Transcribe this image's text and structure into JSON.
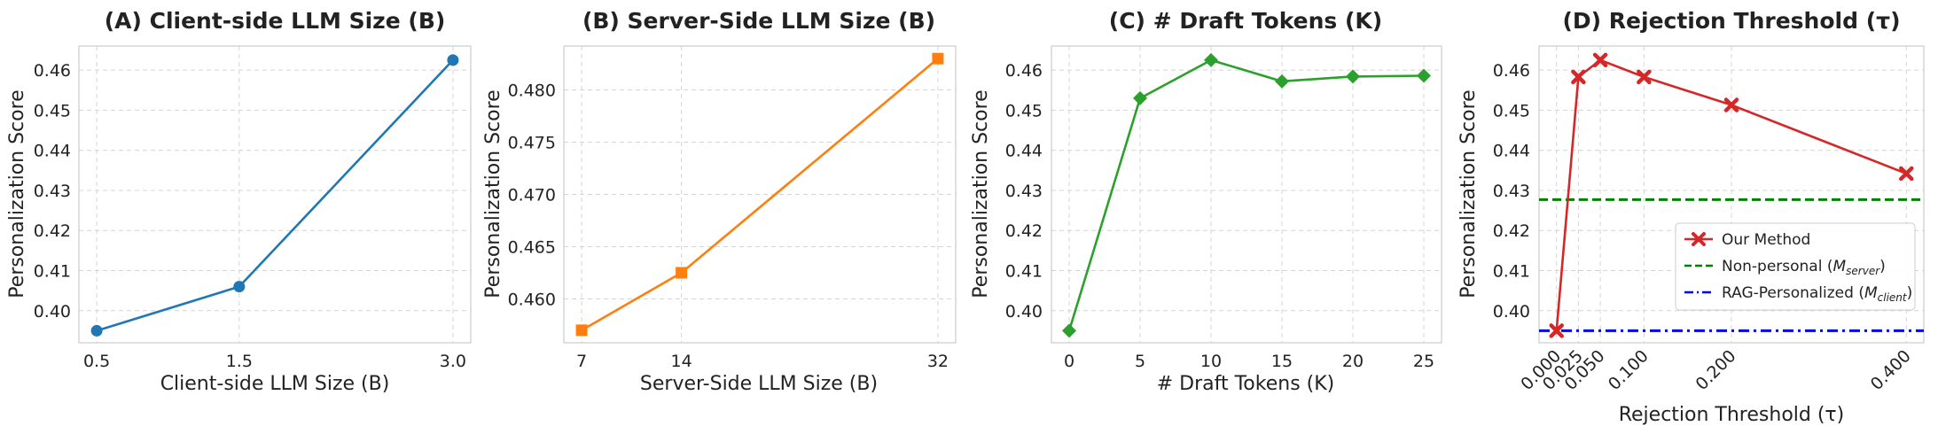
{
  "chart_data": [
    {
      "type": "line",
      "title": "(A) Client-side LLM Size (B)",
      "xlabel": "Client-side LLM Size (B)",
      "ylabel": "Personalization Score",
      "x": [
        0.5,
        1.5,
        3.0
      ],
      "xticks": [
        "0.5",
        "1.5",
        "3.0"
      ],
      "ylim": [
        0.392,
        0.466
      ],
      "yticks": [
        "0.40",
        "0.41",
        "0.42",
        "0.43",
        "0.44",
        "0.45",
        "0.46"
      ],
      "grid": true,
      "series": [
        {
          "values": [
            0.395,
            0.406,
            0.4625
          ],
          "color": "#1f77b4",
          "marker": "circle"
        }
      ]
    },
    {
      "type": "line",
      "title": "(B) Server-Side LLM Size (B)",
      "xlabel": "Server-Side LLM Size (B)",
      "ylabel": "Personalization Score",
      "x": [
        7,
        14,
        32
      ],
      "xticks": [
        "7",
        "14",
        "32"
      ],
      "ylim": [
        0.4558,
        0.4842
      ],
      "yticks": [
        "0.460",
        "0.465",
        "0.470",
        "0.475",
        "0.480"
      ],
      "grid": true,
      "series": [
        {
          "values": [
            0.457,
            0.4625,
            0.483
          ],
          "color": "#ff7f0e",
          "marker": "square"
        }
      ]
    },
    {
      "type": "line",
      "title": "(C) # Draft Tokens (K)",
      "xlabel": "# Draft Tokens (K)",
      "ylabel": "Personalization Score",
      "x": [
        0,
        5,
        10,
        15,
        20,
        25
      ],
      "xticks": [
        "0",
        "5",
        "10",
        "15",
        "20",
        "25"
      ],
      "ylim": [
        0.392,
        0.466
      ],
      "yticks": [
        "0.40",
        "0.41",
        "0.42",
        "0.43",
        "0.44",
        "0.45",
        "0.46"
      ],
      "grid": true,
      "series": [
        {
          "values": [
            0.395,
            0.453,
            0.4625,
            0.4572,
            0.4584,
            0.4586
          ],
          "color": "#2ca02c",
          "marker": "diamond"
        }
      ]
    },
    {
      "type": "line",
      "title": "(D) Rejection Threshold (τ)",
      "xlabel": "Rejection Threshold (τ)",
      "ylabel": "Personalization Score",
      "x": [
        0.0,
        0.025,
        0.05,
        0.1,
        0.2,
        0.4
      ],
      "xticks": [
        "0.000",
        "0.025",
        "0.050",
        "0.100",
        "0.200",
        "0.400"
      ],
      "ylim": [
        0.392,
        0.466
      ],
      "yticks": [
        "0.40",
        "0.41",
        "0.42",
        "0.43",
        "0.44",
        "0.45",
        "0.46"
      ],
      "grid": true,
      "legend_position": "lower-right",
      "series": [
        {
          "name": "Our Method",
          "values": [
            0.395,
            0.4583,
            0.4625,
            0.4583,
            0.4513,
            0.4342
          ],
          "color": "#d62728",
          "marker": "x",
          "style": "solid"
        }
      ],
      "reference_lines": [
        {
          "name": "Non-personal (M_server)",
          "value": 0.4277,
          "color": "#008000",
          "style": "dashed"
        },
        {
          "name": "RAG-Personalized (M_client)",
          "value": 0.395,
          "color": "#0000ff",
          "style": "dashdot"
        }
      ]
    }
  ]
}
